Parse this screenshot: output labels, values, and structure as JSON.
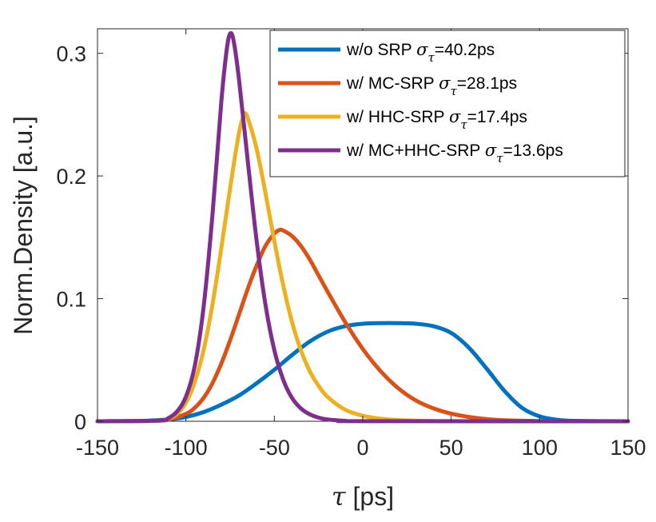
{
  "chart_data": {
    "type": "line",
    "title": "",
    "xlabel": "τ [ps]",
    "xlabel_symbol": "τ",
    "xlabel_unit": " [ps]",
    "ylabel": "Norm.Density [a.u.]",
    "xlim": [
      -150,
      150
    ],
    "ylim": [
      0,
      0.32
    ],
    "xticks": [
      -150,
      -100,
      -50,
      0,
      50,
      100,
      150
    ],
    "xtick_labels": [
      "-150",
      "-100",
      "-50",
      "0",
      "50",
      "100",
      "150"
    ],
    "yticks": [
      0,
      0.1,
      0.2,
      0.3
    ],
    "ytick_labels": [
      "0",
      "0.1",
      "0.2",
      "0.3"
    ],
    "grid": false,
    "legend_position": "top-right",
    "legend_symbol": "σ",
    "legend_symbol_sub": "τ",
    "series": [
      {
        "name": "w/o SRP σ_τ=40.2ps",
        "legend_prefix": "w/o SRP ",
        "legend_value": "=40.2ps",
        "color": "#0072BD",
        "x": [
          -150,
          -130,
          -120,
          -110,
          -100,
          -90,
          -80,
          -70,
          -60,
          -50,
          -40,
          -30,
          -20,
          -10,
          0,
          10,
          20,
          30,
          40,
          50,
          60,
          70,
          80,
          90,
          100,
          110,
          120,
          150
        ],
        "y": [
          0,
          0.0002,
          0.0006,
          0.0015,
          0.0035,
          0.0075,
          0.0135,
          0.021,
          0.031,
          0.042,
          0.054,
          0.065,
          0.073,
          0.0775,
          0.0795,
          0.08,
          0.08,
          0.0795,
          0.0775,
          0.072,
          0.06,
          0.043,
          0.025,
          0.011,
          0.004,
          0.0012,
          0.0003,
          0
        ]
      },
      {
        "name": "w/ MC-SRP σ_τ=28.1ps",
        "legend_prefix": "w/ MC-SRP ",
        "legend_value": "=28.1ps",
        "color": "#D95319",
        "x": [
          -150,
          -120,
          -110,
          -100,
          -95,
          -90,
          -85,
          -80,
          -75,
          -70,
          -65,
          -60,
          -55,
          -50,
          -47,
          -45,
          -40,
          -35,
          -30,
          -25,
          -20,
          -10,
          0,
          10,
          20,
          30,
          40,
          50,
          60,
          70,
          80,
          100,
          120,
          150
        ],
        "y": [
          0,
          0.0003,
          0.0015,
          0.006,
          0.011,
          0.019,
          0.031,
          0.047,
          0.066,
          0.087,
          0.108,
          0.127,
          0.143,
          0.153,
          0.156,
          0.1555,
          0.151,
          0.143,
          0.132,
          0.119,
          0.106,
          0.081,
          0.059,
          0.041,
          0.027,
          0.017,
          0.0105,
          0.0062,
          0.0035,
          0.0018,
          0.0008,
          0.0002,
          3e-05,
          0
        ]
      },
      {
        "name": "w/ HHC-SRP σ_τ=17.4ps",
        "legend_prefix": "w/ HHC-SRP ",
        "legend_value": "=17.4ps",
        "color": "#EDB120",
        "x": [
          -150,
          -115,
          -110,
          -105,
          -100,
          -95,
          -90,
          -85,
          -80,
          -75,
          -70,
          -67,
          -65,
          -60,
          -55,
          -50,
          -45,
          -40,
          -35,
          -30,
          -25,
          -20,
          -10,
          0,
          10,
          20,
          40,
          60,
          100,
          150
        ],
        "y": [
          0,
          0.0005,
          0.002,
          0.006,
          0.015,
          0.032,
          0.058,
          0.095,
          0.141,
          0.19,
          0.235,
          0.25,
          0.247,
          0.222,
          0.186,
          0.147,
          0.111,
          0.081,
          0.058,
          0.041,
          0.029,
          0.02,
          0.0095,
          0.0045,
          0.0021,
          0.001,
          0.0002,
          3e-05,
          0,
          0
        ]
      },
      {
        "name": "w/ MC+HHC-SRP σ_τ=13.6ps",
        "legend_prefix": "w/ MC+HHC-SRP ",
        "legend_value": "=13.6ps",
        "color": "#7E2F8E",
        "x": [
          -150,
          -115,
          -110,
          -105,
          -100,
          -95,
          -90,
          -85,
          -80,
          -77,
          -75,
          -73,
          -70,
          -65,
          -60,
          -55,
          -50,
          -45,
          -40,
          -35,
          -30,
          -25,
          -20,
          -10,
          0,
          150
        ],
        "y": [
          0,
          0.0006,
          0.0025,
          0.008,
          0.02,
          0.045,
          0.093,
          0.168,
          0.26,
          0.302,
          0.316,
          0.31,
          0.279,
          0.212,
          0.147,
          0.095,
          0.058,
          0.034,
          0.019,
          0.0105,
          0.0057,
          0.003,
          0.0015,
          0.0004,
          0.0001,
          0
        ]
      }
    ]
  }
}
